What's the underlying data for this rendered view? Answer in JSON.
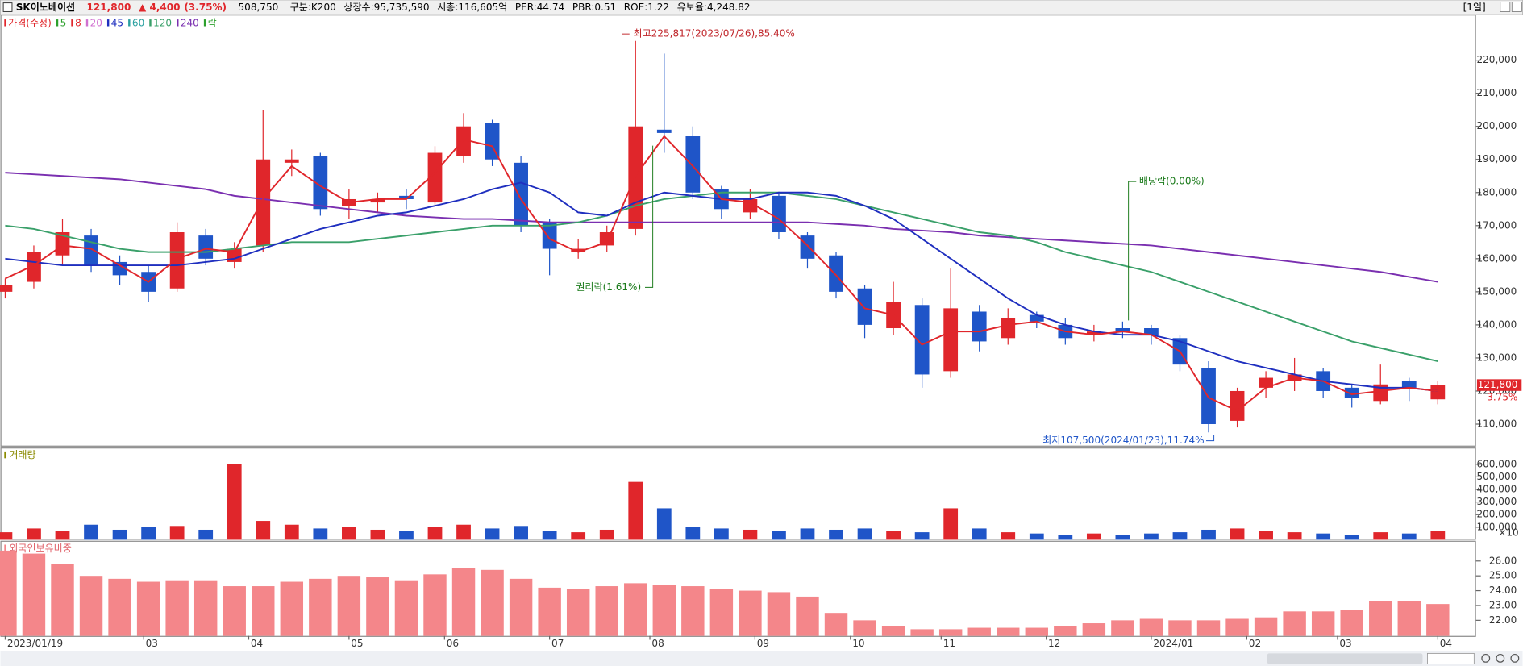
{
  "header": {
    "title": "SK이노베이션",
    "price": "121,800",
    "change": "▲ 4,400",
    "change_pct": "(3.75%)",
    "volume": "508,750",
    "fields": [
      "구분:K200",
      "상장수:95,735,590",
      "시총:116,605억",
      "PER:44.74",
      "PBR:0.51",
      "ROE:1.22",
      "유보율:4,248.82"
    ],
    "period": "[1일]"
  },
  "chart_data": [
    {
      "type": "candlestick",
      "up_color": "#e0262b",
      "down_color": "#1f55c8",
      "legend": [
        {
          "name": "가격(수정)",
          "color": "#e0262b"
        },
        {
          "name": "5",
          "color": "#2ca02c"
        },
        {
          "name": "8",
          "color": "#e0262b"
        },
        {
          "name": "20",
          "color": "#d070d0"
        },
        {
          "name": "45",
          "color": "#1f2fbf"
        },
        {
          "name": "60",
          "color": "#2aa0a0"
        },
        {
          "name": "120",
          "color": "#3aa06a"
        },
        {
          "name": "240",
          "color": "#7a2fb0"
        },
        {
          "name": "락",
          "color": "#2ca02c"
        }
      ],
      "annotations": [
        "최고225,817(2023/07/26),85.40%",
        "권리락(1.61%)",
        "배당락(0.00%)",
        "최저107,500(2024/01/23),11.74%"
      ],
      "change_label": "3.75%",
      "x": [
        0,
        6,
        12,
        18,
        24,
        30,
        36,
        42,
        48,
        54,
        60,
        66,
        72,
        78,
        84,
        90,
        96,
        102,
        108,
        114,
        120,
        126,
        132,
        138,
        144,
        150,
        156,
        162,
        168,
        174,
        180,
        186,
        192,
        198,
        204,
        210,
        216,
        222,
        228,
        234,
        240,
        246,
        252,
        258,
        264,
        270,
        276,
        282,
        288,
        294,
        300
      ],
      "open": [
        150000,
        153000,
        161000,
        167000,
        159000,
        156000,
        151000,
        167000,
        159000,
        164000,
        189000,
        191000,
        176000,
        177000,
        179000,
        177000,
        191000,
        201000,
        189000,
        171000,
        162000,
        164000,
        169000,
        199000,
        197000,
        181000,
        174000,
        179000,
        167000,
        161000,
        151000,
        139000,
        146000,
        126000,
        144000,
        136000,
        143000,
        140000,
        137000,
        139000,
        139000,
        136000,
        127000,
        111000,
        121000,
        123000,
        126000,
        121000,
        117000,
        123000,
        117500
      ],
      "high": [
        154000,
        164000,
        172000,
        169000,
        161000,
        158000,
        171000,
        169000,
        165000,
        205000,
        193000,
        192000,
        181000,
        180000,
        181000,
        194000,
        204000,
        202000,
        191000,
        172000,
        166000,
        170000,
        225817,
        222000,
        200000,
        182000,
        181000,
        180000,
        168000,
        162000,
        152000,
        153000,
        148000,
        157000,
        146000,
        145000,
        144000,
        142000,
        140000,
        141000,
        140000,
        137000,
        129000,
        121000,
        126000,
        130000,
        127000,
        122000,
        128000,
        124000,
        123000
      ],
      "low": [
        148000,
        151000,
        158000,
        156000,
        152000,
        147000,
        150000,
        158000,
        157000,
        162000,
        185000,
        173000,
        172000,
        174000,
        175000,
        176000,
        189000,
        188000,
        168000,
        155000,
        160000,
        162000,
        167000,
        192000,
        178000,
        172000,
        172000,
        166000,
        157000,
        148000,
        136000,
        137000,
        121000,
        124000,
        132000,
        134000,
        139000,
        134000,
        135000,
        136000,
        134000,
        126000,
        107500,
        109000,
        118000,
        120000,
        118000,
        115000,
        116000,
        117000,
        116000
      ],
      "close": [
        152000,
        162000,
        168000,
        158000,
        155000,
        150000,
        168000,
        160000,
        163000,
        190000,
        190000,
        175000,
        178000,
        178000,
        178000,
        192000,
        200000,
        190000,
        170000,
        163000,
        163000,
        168000,
        200000,
        198000,
        180000,
        175000,
        178000,
        168000,
        160000,
        150000,
        140000,
        147000,
        125000,
        145000,
        135000,
        142000,
        141000,
        136000,
        138000,
        138000,
        137000,
        128000,
        110000,
        120000,
        124000,
        125000,
        120000,
        118000,
        122000,
        121000,
        121800
      ],
      "series": [
        {
          "name": "240",
          "color": "#7a2fb0",
          "values": [
            186000,
            185500,
            185000,
            184500,
            184000,
            183000,
            182000,
            181000,
            179000,
            178000,
            177000,
            176000,
            175000,
            174000,
            173000,
            172500,
            172000,
            172000,
            171500,
            171000,
            171000,
            171000,
            171000,
            171000,
            171000,
            171000,
            171000,
            171000,
            171000,
            170500,
            170000,
            169000,
            168500,
            168000,
            167000,
            166500,
            166000,
            165500,
            165000,
            164500,
            164000,
            163000,
            162000,
            161000,
            160000,
            159000,
            158000,
            157000,
            156000,
            154500,
            153000
          ]
        },
        {
          "name": "120",
          "color": "#3aa06a",
          "values": [
            170000,
            169000,
            167000,
            165000,
            163000,
            162000,
            162000,
            162000,
            163000,
            164000,
            165000,
            165000,
            165000,
            166000,
            167000,
            168000,
            169000,
            170000,
            170000,
            170000,
            171000,
            173000,
            176000,
            178000,
            179000,
            180000,
            180000,
            180000,
            179000,
            178000,
            176000,
            174000,
            172000,
            170000,
            168000,
            167000,
            165000,
            162000,
            160000,
            158000,
            156000,
            153000,
            150000,
            147000,
            144000,
            141000,
            138000,
            135000,
            133000,
            131000,
            129000
          ]
        },
        {
          "name": "45",
          "color": "#1f2fbf",
          "values": [
            160000,
            159000,
            158000,
            158000,
            158000,
            158000,
            158000,
            159000,
            160000,
            163000,
            166000,
            169000,
            171000,
            173000,
            174000,
            176000,
            178000,
            181000,
            183000,
            180000,
            174000,
            173000,
            177000,
            180000,
            179000,
            178000,
            178000,
            180000,
            180000,
            179000,
            176000,
            172000,
            166000,
            160000,
            154000,
            148000,
            143000,
            140000,
            138000,
            137000,
            137000,
            135000,
            132000,
            129000,
            127000,
            125000,
            123000,
            122000,
            121000,
            121000,
            120000
          ]
        },
        {
          "name": "8",
          "color": "#e0262b",
          "values": [
            154000,
            158000,
            164000,
            163000,
            158000,
            153000,
            160000,
            163000,
            162000,
            178000,
            188000,
            182000,
            177000,
            178000,
            178000,
            186000,
            196000,
            194000,
            178000,
            166000,
            162000,
            165000,
            185000,
            197000,
            188000,
            178000,
            177000,
            172000,
            164000,
            155000,
            145000,
            143000,
            134000,
            138000,
            138000,
            140000,
            141000,
            138000,
            137000,
            138000,
            137000,
            132000,
            118000,
            114000,
            121000,
            124000,
            123000,
            119000,
            120000,
            121000,
            120000
          ]
        }
      ],
      "xlim": [
        -1,
        308
      ],
      "ylim": [
        103500,
        233200
      ],
      "yticks": [
        {
          "value": 110000,
          "label": "110,000"
        },
        {
          "value": 120000,
          "label": "120,000"
        },
        {
          "value": 130000,
          "label": "130,000"
        },
        {
          "value": 140000,
          "label": "140,000"
        },
        {
          "value": 150000,
          "label": "150,000"
        },
        {
          "value": 160000,
          "label": "160,000"
        },
        {
          "value": 170000,
          "label": "170,000"
        },
        {
          "value": 180000,
          "label": "180,000"
        },
        {
          "value": 190000,
          "label": "190,000"
        },
        {
          "value": 200000,
          "label": "200,000"
        },
        {
          "value": 210000,
          "label": "210,000"
        },
        {
          "value": 220000,
          "label": "220,000"
        }
      ]
    },
    {
      "type": "bar",
      "title": "거래량",
      "unit_label": "×10",
      "up_color": "#e0262b",
      "down_color": "#1f55c8",
      "values": [
        60000,
        90000,
        70000,
        120000,
        80000,
        100000,
        110000,
        80000,
        600000,
        150000,
        120000,
        90000,
        100000,
        80000,
        70000,
        100000,
        120000,
        90000,
        110000,
        70000,
        60000,
        80000,
        460000,
        250000,
        100000,
        90000,
        80000,
        70000,
        90000,
        80000,
        90000,
        70000,
        60000,
        250000,
        90000,
        60000,
        50000,
        40000,
        50000,
        40000,
        50000,
        60000,
        80000,
        90000,
        70000,
        60000,
        50000,
        40000,
        60000,
        50000,
        70000
      ],
      "xlim": [
        -1,
        308
      ],
      "ylim": [
        0,
        725000
      ],
      "yticks": [
        {
          "value": 100000,
          "label": "100,000"
        },
        {
          "value": 200000,
          "label": "200,000"
        },
        {
          "value": 300000,
          "label": "300,000"
        },
        {
          "value": 400000,
          "label": "400,000"
        },
        {
          "value": 500000,
          "label": "500,000"
        },
        {
          "value": 600000,
          "label": "600,000"
        }
      ]
    },
    {
      "type": "bar",
      "title": "외국인보유비중",
      "color": "#f4868a",
      "values": [
        26.7,
        26.5,
        25.8,
        25,
        24.8,
        24.6,
        24.7,
        24.7,
        24.3,
        24.3,
        24.6,
        24.8,
        25,
        24.9,
        24.7,
        25.1,
        25.5,
        25.4,
        24.8,
        24.2,
        24.1,
        24.3,
        24.5,
        24.4,
        24.3,
        24.1,
        24,
        23.9,
        23.6,
        22.5,
        22,
        21.6,
        21.4,
        21.4,
        21.5,
        21.5,
        21.5,
        21.6,
        21.8,
        22,
        22.1,
        22,
        22,
        22.1,
        22.2,
        22.6,
        22.6,
        22.7,
        23.3,
        23.3,
        23.1
      ],
      "xlim": [
        -1,
        308
      ],
      "ylim": [
        20.95,
        27.3
      ],
      "yticks": [
        {
          "value": 22,
          "label": "22.00"
        },
        {
          "value": 23,
          "label": "23.00"
        },
        {
          "value": 24,
          "label": "24.00"
        },
        {
          "value": 25,
          "label": "25.00"
        },
        {
          "value": 26,
          "label": "26.00"
        }
      ],
      "xticks": [
        {
          "value": 0,
          "label": "2023/01/19"
        },
        {
          "value": 29,
          "label": "03"
        },
        {
          "value": 51,
          "label": "04"
        },
        {
          "value": 72,
          "label": "05"
        },
        {
          "value": 92,
          "label": "06"
        },
        {
          "value": 114,
          "label": "07"
        },
        {
          "value": 135,
          "label": "08"
        },
        {
          "value": 157,
          "label": "09"
        },
        {
          "value": 177,
          "label": "10"
        },
        {
          "value": 196,
          "label": "11"
        },
        {
          "value": 218,
          "label": "12"
        },
        {
          "value": 240,
          "label": "2024/01"
        },
        {
          "value": 260,
          "label": "02"
        },
        {
          "value": 279,
          "label": "03"
        },
        {
          "value": 300,
          "label": "04"
        }
      ]
    }
  ]
}
